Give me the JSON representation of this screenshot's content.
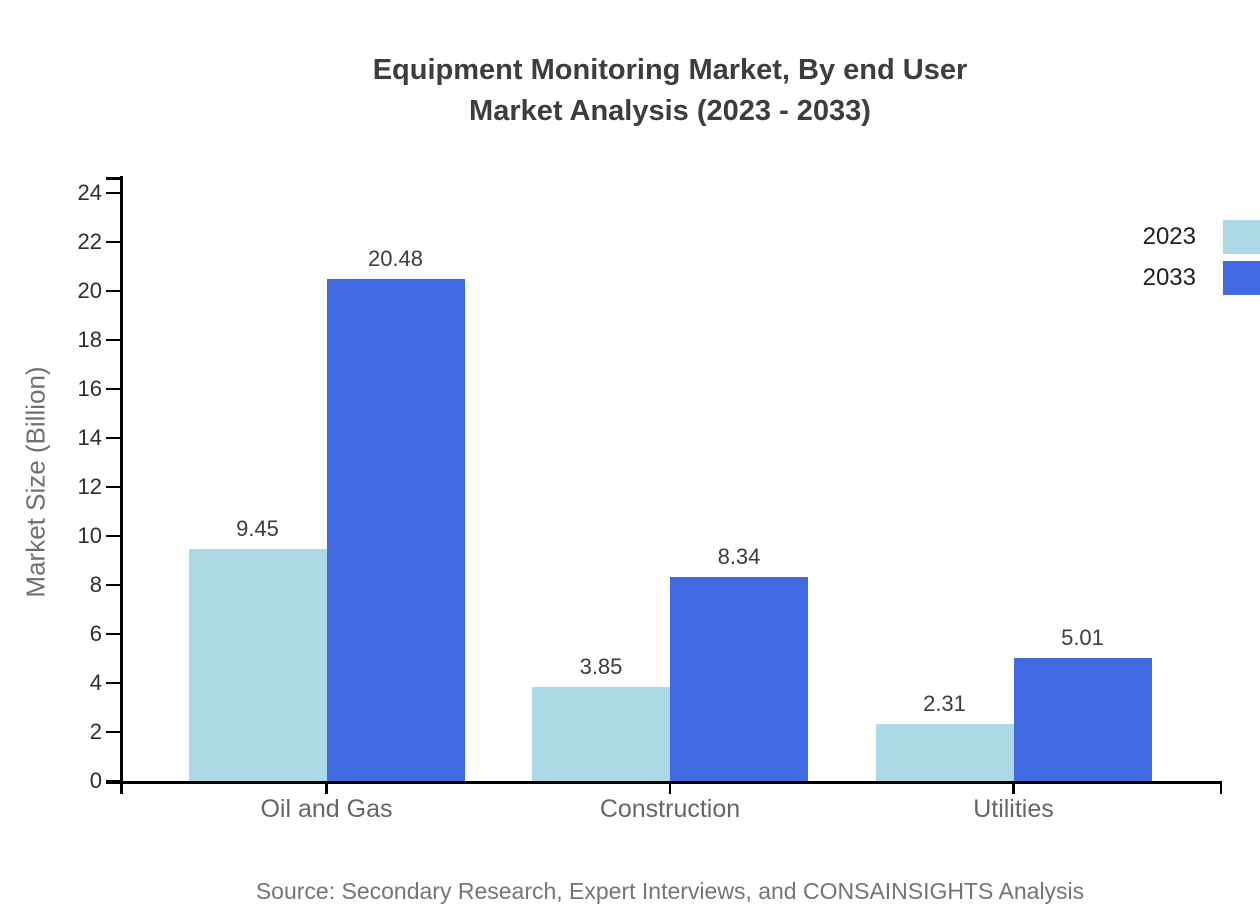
{
  "title": {
    "line1": "Equipment Monitoring Market, By end User",
    "line2": "Market Analysis (2023 - 2033)"
  },
  "source": "Source: Secondary Research, Expert Interviews, and CONSAINSIGHTS Analysis",
  "chart_data": {
    "type": "bar",
    "title": "Equipment Monitoring Market, By end User Market Analysis (2023 - 2033)",
    "categories": [
      "Oil and Gas",
      "Construction",
      "Utilities"
    ],
    "series": [
      {
        "name": "2023",
        "color": "#ADD8E6",
        "values": [
          9.45,
          3.85,
          2.31
        ]
      },
      {
        "name": "2033",
        "color": "#4169E1",
        "values": [
          20.48,
          8.34,
          5.01
        ]
      }
    ],
    "xlabel": "",
    "ylabel": "Market Size (Billion)",
    "ylim": [
      0,
      24
    ],
    "ytick_step": 2,
    "grid": false,
    "legend_position": "top-right",
    "value_labels_shown": true
  }
}
